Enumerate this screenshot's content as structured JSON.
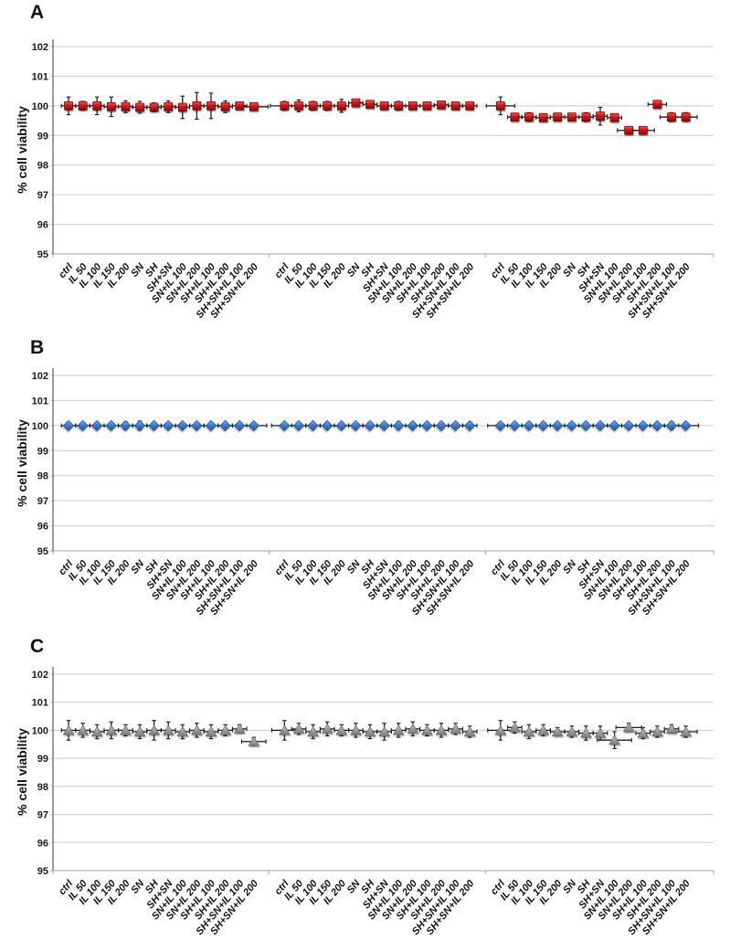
{
  "figure": {
    "background": "#ffffff",
    "grid_color": "#c9c9c9",
    "axis_color": "#595959",
    "baseline_color": "#a3a3a3",
    "errorbar_color": "#1c1c1c"
  },
  "chart_data": [
    {
      "type": "scatter",
      "panel": "A",
      "ylabel": "% cell viability",
      "ylim": [
        95,
        102
      ],
      "yticks": [
        102,
        101,
        100,
        99,
        98,
        97,
        96,
        95
      ],
      "grid": true,
      "legend": "none",
      "marker": "square",
      "marker_color": "#d01616",
      "categories": [
        "ctrl",
        "IL 50",
        "IL 100",
        "IL 150",
        "IL 200",
        "SN",
        "SH",
        "SH+SN",
        "SN+IL 100",
        "SN+IL 200",
        "SH+IL 100",
        "SH+IL 200",
        "SH+SN+IL 100",
        "SH+SN+IL 200"
      ],
      "groups": [
        {
          "values": [
            100,
            100,
            100,
            99.97,
            99.97,
            99.95,
            99.95,
            99.97,
            99.95,
            100,
            100,
            99.97,
            100,
            99.97
          ],
          "yerr": [
            0.3,
            0.15,
            0.3,
            0.33,
            0.2,
            0.2,
            0.15,
            0.2,
            0.38,
            0.45,
            0.43,
            0.2,
            0.13,
            0.1
          ],
          "xerr": [
            0.5,
            0.5,
            0.5,
            0.5,
            0.5,
            0.5,
            0.5,
            0.5,
            0.5,
            0.5,
            0.5,
            0.5,
            0.5,
            1.0
          ]
        },
        {
          "values": [
            100,
            100,
            100,
            100,
            100,
            100.1,
            100.05,
            100,
            100,
            100,
            100,
            100.03,
            100,
            100
          ],
          "yerr": [
            0.15,
            0.2,
            0.15,
            0.15,
            0.22,
            0.1,
            0.12,
            0.1,
            0.15,
            0.1,
            0.1,
            0.1,
            0.12,
            0.1
          ],
          "xerr": [
            1.0,
            0.5,
            0.5,
            0.5,
            0.5,
            0.5,
            0.5,
            0.5,
            0.5,
            0.5,
            0.5,
            0.5,
            0.5,
            0.5
          ]
        },
        {
          "values": [
            100,
            99.62,
            99.62,
            99.6,
            99.62,
            99.62,
            99.62,
            99.65,
            99.6,
            99.17,
            99.17,
            100.05,
            99.62,
            99.62
          ],
          "yerr": [
            0.3,
            0.1,
            0.15,
            0.12,
            0.1,
            0.1,
            0.15,
            0.3,
            0.12,
            0.1,
            0.12,
            0.1,
            0.15,
            0.15
          ],
          "xerr": [
            1.0,
            0.5,
            0.5,
            0.5,
            0.5,
            0.5,
            0.5,
            0.5,
            0.5,
            0.8,
            0.8,
            0.65,
            0.8,
            0.8
          ]
        }
      ]
    },
    {
      "type": "scatter",
      "panel": "B",
      "ylabel": "% cell viability",
      "ylim": [
        95,
        102
      ],
      "yticks": [
        102,
        101,
        100,
        99,
        98,
        97,
        96,
        95
      ],
      "grid": true,
      "legend": "none",
      "marker": "diamond",
      "marker_color": "#3b78c9",
      "categories": [
        "ctrl",
        "IL 50",
        "IL 100",
        "IL 150",
        "IL 200",
        "SN",
        "SH",
        "SH+SN",
        "SN+IL 100",
        "SN+IL 200",
        "SH+IL 100",
        "SH+IL 200",
        "SH+SN+IL 100",
        "SH+SN+IL 200"
      ],
      "groups": [
        {
          "values": [
            100,
            100,
            100,
            100,
            100,
            100,
            100,
            100,
            100,
            100,
            100,
            100,
            100,
            100
          ],
          "yerr": [
            0.06,
            0.06,
            0.06,
            0.1,
            0.15,
            0.18,
            0.06,
            0.09,
            0.06,
            0.12,
            0.06,
            0.06,
            0.09,
            0.06
          ],
          "xerr": [
            0.5,
            0.5,
            0.5,
            0.5,
            0.5,
            0.5,
            0.5,
            0.5,
            0.5,
            0.5,
            0.5,
            0.5,
            0.5,
            0.9
          ]
        },
        {
          "values": [
            100,
            100,
            100,
            100,
            100,
            100,
            100,
            100,
            100,
            100,
            100,
            100,
            100,
            100
          ],
          "yerr": [
            0.06,
            0.09,
            0.06,
            0.06,
            0.06,
            0.06,
            0.06,
            0.06,
            0.15,
            0.06,
            0.06,
            0.1,
            0.06,
            0.06
          ],
          "xerr": [
            0.9,
            0.5,
            0.5,
            0.5,
            0.5,
            0.5,
            0.5,
            0.5,
            0.5,
            0.5,
            0.5,
            0.5,
            0.5,
            0.5
          ]
        },
        {
          "values": [
            100,
            100,
            100,
            100,
            100,
            100,
            100,
            100,
            100,
            100,
            100,
            100,
            100,
            100
          ],
          "yerr": [
            0.06,
            0.06,
            0.06,
            0.06,
            0.06,
            0.06,
            0.06,
            0.06,
            0.06,
            0.06,
            0.12,
            0.06,
            0.15,
            0.09
          ],
          "xerr": [
            0.9,
            0.5,
            0.5,
            0.5,
            0.5,
            0.5,
            0.5,
            0.5,
            0.5,
            0.5,
            0.5,
            0.5,
            0.5,
            0.9
          ]
        }
      ]
    },
    {
      "type": "scatter",
      "panel": "C",
      "ylabel": "% cell viability",
      "ylim": [
        95,
        102
      ],
      "yticks": [
        102,
        101,
        100,
        99,
        98,
        97,
        96,
        95
      ],
      "grid": true,
      "legend": "none",
      "marker": "triangle",
      "marker_color": "#9a9a9a",
      "categories": [
        "ctrl",
        "IL 50",
        "IL 100",
        "IL 150",
        "IL 200",
        "SN",
        "SH",
        "SH+SN",
        "SN+IL 100",
        "SN+IL 200",
        "SH+IL 100",
        "SH+IL 200",
        "SH+SN+IL 100",
        "SH+SN+IL 200"
      ],
      "groups": [
        {
          "values": [
            100,
            100,
            99.95,
            100,
            100,
            99.95,
            100,
            100,
            99.95,
            100,
            99.95,
            100,
            100.05,
            99.6
          ],
          "yerr": [
            0.35,
            0.25,
            0.25,
            0.3,
            0.2,
            0.25,
            0.35,
            0.3,
            0.25,
            0.25,
            0.25,
            0.2,
            0.15,
            0.15
          ],
          "xerr": [
            0.5,
            0.5,
            0.5,
            0.5,
            0.5,
            0.5,
            0.5,
            0.5,
            0.5,
            0.5,
            0.5,
            0.5,
            0.5,
            0.85
          ]
        },
        {
          "values": [
            100,
            100.05,
            99.95,
            100.05,
            100,
            100,
            99.95,
            99.95,
            100,
            100.05,
            100,
            100,
            100.05,
            99.95
          ],
          "yerr": [
            0.35,
            0.2,
            0.25,
            0.25,
            0.2,
            0.25,
            0.25,
            0.3,
            0.25,
            0.25,
            0.2,
            0.25,
            0.2,
            0.2
          ],
          "xerr": [
            0.9,
            0.5,
            0.5,
            0.5,
            0.5,
            0.5,
            0.5,
            0.5,
            0.5,
            0.5,
            0.5,
            0.5,
            0.5,
            0.5
          ]
        },
        {
          "values": [
            100,
            100.1,
            99.95,
            100,
            99.95,
            99.95,
            99.9,
            99.9,
            99.65,
            100.1,
            99.9,
            99.95,
            100.05,
            99.95
          ],
          "yerr": [
            0.35,
            0.2,
            0.25,
            0.2,
            0.15,
            0.2,
            0.25,
            0.25,
            0.3,
            0.15,
            0.2,
            0.2,
            0.15,
            0.2
          ],
          "xerr": [
            0.9,
            0.5,
            0.5,
            0.5,
            0.5,
            0.5,
            0.5,
            0.5,
            1.2,
            0.9,
            0.5,
            0.5,
            0.5,
            0.8
          ]
        }
      ]
    }
  ]
}
